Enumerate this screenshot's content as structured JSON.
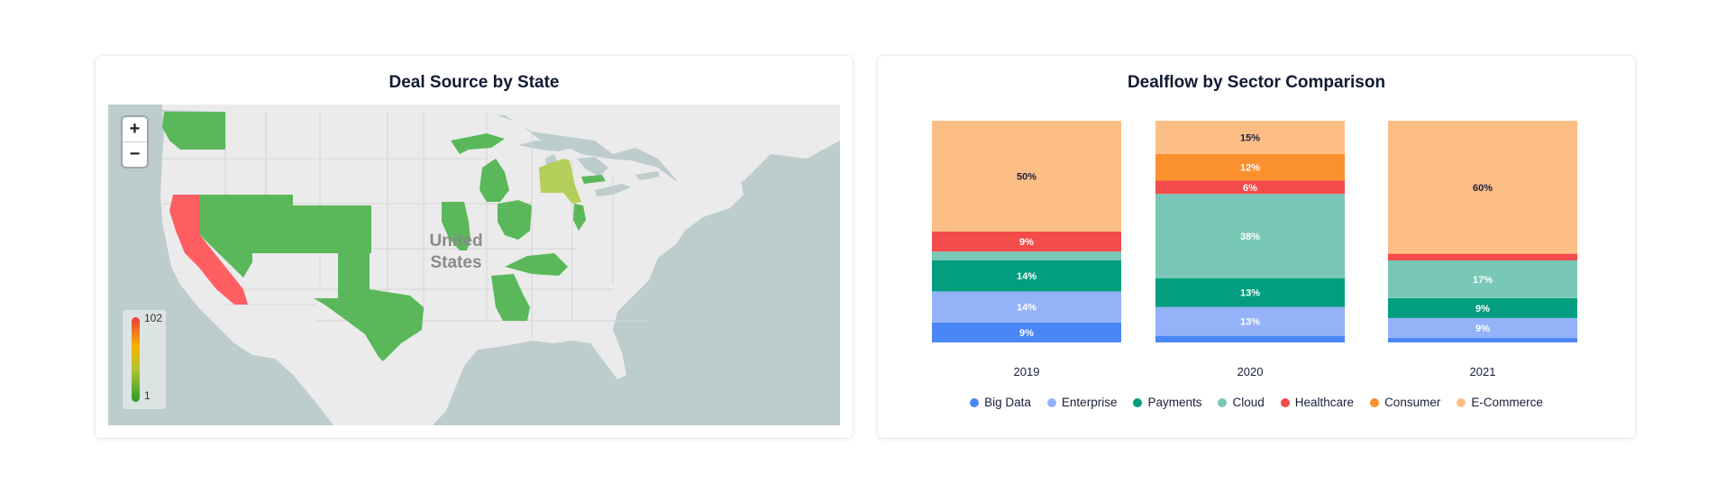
{
  "map_card": {
    "title": "Deal Source by State",
    "country_label_line1": "United",
    "country_label_line2": "States",
    "zoom_in_label": "+",
    "zoom_out_label": "−",
    "scale": {
      "max_label": "102",
      "min_label": "1"
    },
    "colors": {
      "land": "#ebebeb",
      "water": "#bdcccd",
      "high": "#ff5f63",
      "mid": "#b3cf5a",
      "low": "#5ab85a",
      "border": "#d5d5d5"
    },
    "highlighted_states": [
      {
        "name": "California",
        "level": "high"
      },
      {
        "name": "New York",
        "level": "mid"
      },
      {
        "name": "Washington",
        "level": "low"
      },
      {
        "name": "Nevada",
        "level": "low"
      },
      {
        "name": "Utah",
        "level": "low"
      },
      {
        "name": "Colorado",
        "level": "low"
      },
      {
        "name": "Texas",
        "level": "low"
      },
      {
        "name": "Illinois",
        "level": "low"
      },
      {
        "name": "Michigan",
        "level": "low"
      },
      {
        "name": "Ohio",
        "level": "low"
      },
      {
        "name": "Georgia",
        "level": "low"
      },
      {
        "name": "North Carolina",
        "level": "low"
      },
      {
        "name": "New Jersey",
        "level": "low"
      },
      {
        "name": "Massachusetts",
        "level": "low"
      }
    ]
  },
  "bar_card": {
    "title": "Dealflow by Sector Comparison"
  },
  "chart_data": {
    "type": "bar",
    "stacked": true,
    "normalized_percent": true,
    "categories": [
      "2019",
      "2020",
      "2021"
    ],
    "series": [
      {
        "name": "Big Data",
        "color": "#4b86f5",
        "values": [
          9,
          3,
          2
        ],
        "labels": [
          "9%",
          "",
          ""
        ]
      },
      {
        "name": "Enterprise",
        "color": "#94b2f7",
        "values": [
          14,
          13,
          9
        ],
        "labels": [
          "14%",
          "13%",
          "9%"
        ]
      },
      {
        "name": "Payments",
        "color": "#029e7f",
        "values": [
          14,
          13,
          9
        ],
        "labels": [
          "14%",
          "13%",
          "9%"
        ]
      },
      {
        "name": "Cloud",
        "color": "#79c7b6",
        "values": [
          4,
          38,
          17
        ],
        "labels": [
          "",
          "38%",
          "17%"
        ]
      },
      {
        "name": "Healthcare",
        "color": "#f44b4b",
        "values": [
          9,
          6,
          3
        ],
        "labels": [
          "9%",
          "6%",
          ""
        ]
      },
      {
        "name": "Consumer",
        "color": "#fa902e",
        "values": [
          0,
          12,
          0
        ],
        "labels": [
          "",
          "12%",
          ""
        ]
      },
      {
        "name": "E-Commerce",
        "color": "#fdbe86",
        "values": [
          50,
          15,
          60
        ],
        "labels": [
          "50%",
          "15%",
          "60%"
        ]
      }
    ],
    "ylim": [
      0,
      100
    ],
    "legend_position": "bottom",
    "grid": false
  }
}
